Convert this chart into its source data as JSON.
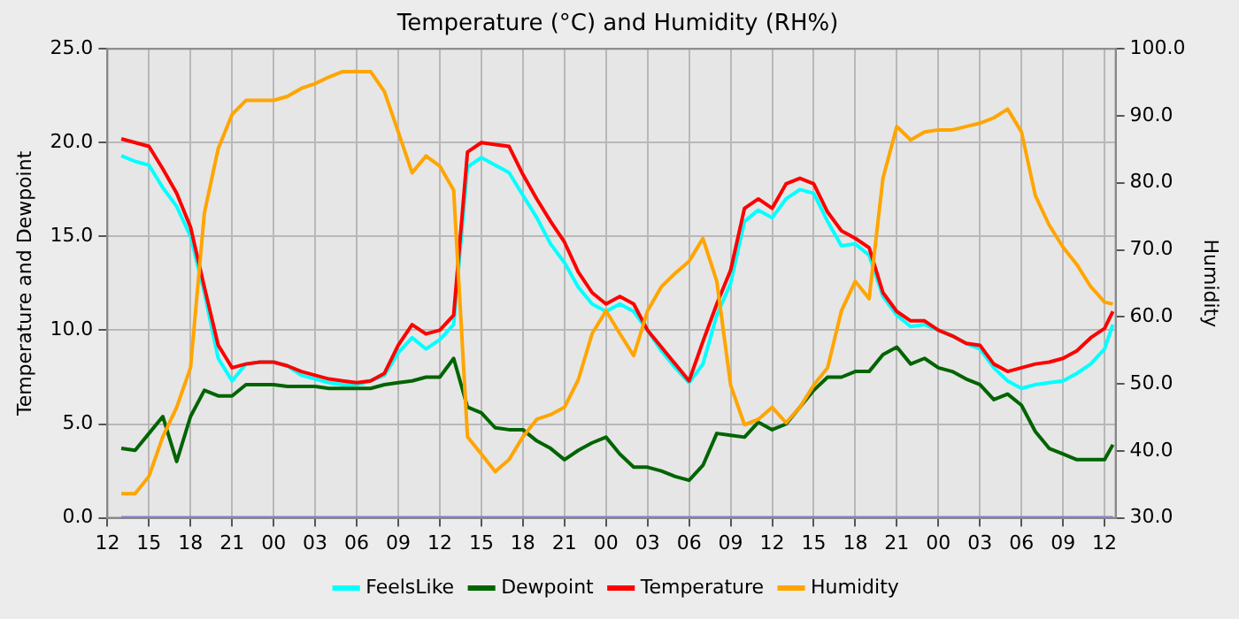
{
  "chart_data": {
    "type": "line",
    "title": "Temperature (°C) and Humidity (RH%)",
    "ylabel": "Temperature and Dewpoint",
    "y2label": "Humidity",
    "x": [
      13,
      14,
      15,
      16,
      17,
      18,
      19,
      20,
      21,
      22,
      23,
      24,
      25,
      26,
      27,
      28,
      29,
      30,
      31,
      32,
      33,
      34,
      35,
      36,
      37,
      38,
      39,
      40,
      41,
      42,
      43,
      44,
      45,
      46,
      47,
      48,
      49,
      50,
      51,
      52,
      53,
      54,
      55,
      56,
      57,
      58,
      59,
      60,
      61,
      62,
      63,
      64,
      65,
      66,
      67,
      68,
      69,
      70,
      71,
      72,
      73,
      74,
      75,
      76,
      77,
      78,
      79,
      80,
      81,
      82,
      83,
      84,
      84.6
    ],
    "series": [
      {
        "name": "FeelsLike",
        "color": "#00ffff",
        "values": [
          19.3,
          19.0,
          18.8,
          17.6,
          16.6,
          15.0,
          12.0,
          8.5,
          7.3,
          8.2,
          8.3,
          8.3,
          8.1,
          7.6,
          7.4,
          7.2,
          7.1,
          7.1,
          7.3,
          7.6,
          8.8,
          9.6,
          9.0,
          9.5,
          10.3,
          18.7,
          19.2,
          18.8,
          18.4,
          17.2,
          16.0,
          14.6,
          13.6,
          12.3,
          11.4,
          11.0,
          11.4,
          11.0,
          10.0,
          8.9,
          8.0,
          7.2,
          8.2,
          10.8,
          12.5,
          15.8,
          16.4,
          16.0,
          17.0,
          17.5,
          17.3,
          15.8,
          14.5,
          14.6,
          14.0,
          11.8,
          10.8,
          10.2,
          10.3,
          10.0,
          9.7,
          9.3,
          9.0,
          8.0,
          7.3,
          6.9,
          7.1,
          7.2,
          7.3,
          7.7,
          8.2,
          9.0,
          10.3
        ]
      },
      {
        "name": "Dewpoint",
        "color": "#006400",
        "values": [
          3.7,
          3.6,
          4.5,
          5.4,
          3.0,
          5.4,
          6.8,
          6.5,
          6.5,
          7.1,
          7.1,
          7.1,
          7.0,
          7.0,
          7.0,
          6.9,
          6.9,
          6.9,
          6.9,
          7.1,
          7.2,
          7.3,
          7.5,
          7.5,
          8.5,
          5.9,
          5.6,
          4.8,
          4.7,
          4.7,
          4.1,
          3.7,
          3.1,
          3.6,
          4.0,
          4.3,
          3.4,
          2.7,
          2.7,
          2.5,
          2.2,
          2.0,
          2.8,
          4.5,
          4.4,
          4.3,
          5.1,
          4.7,
          5.0,
          5.9,
          6.8,
          7.5,
          7.5,
          7.8,
          7.8,
          8.7,
          9.1,
          8.2,
          8.5,
          8.0,
          7.8,
          7.4,
          7.1,
          6.3,
          6.6,
          6.0,
          4.6,
          3.7,
          3.4,
          3.1,
          3.1,
          3.1,
          3.9
        ]
      },
      {
        "name": "Temperature",
        "color": "#ff0000",
        "values": [
          20.2,
          20.0,
          19.8,
          18.6,
          17.3,
          15.5,
          12.3,
          9.2,
          8.0,
          8.2,
          8.3,
          8.3,
          8.1,
          7.8,
          7.6,
          7.4,
          7.3,
          7.2,
          7.3,
          7.7,
          9.2,
          10.3,
          9.8,
          10.0,
          10.8,
          19.5,
          20.0,
          19.9,
          19.8,
          18.3,
          17.0,
          15.8,
          14.7,
          13.1,
          12.0,
          11.4,
          11.8,
          11.4,
          10.0,
          9.1,
          8.2,
          7.3,
          9.4,
          11.4,
          13.2,
          16.5,
          17.0,
          16.5,
          17.8,
          18.1,
          17.8,
          16.3,
          15.3,
          14.9,
          14.4,
          12.0,
          11.0,
          10.5,
          10.5,
          10.0,
          9.7,
          9.3,
          9.2,
          8.2,
          7.8,
          8.0,
          8.2,
          8.3,
          8.5,
          8.9,
          9.6,
          10.1,
          11.0
        ]
      },
      {
        "name": "Humidity",
        "color": "#ffa500",
        "axis": "y2",
        "values": [
          33.6,
          33.6,
          36.2,
          42.1,
          46.5,
          52.4,
          75.5,
          85.1,
          90.2,
          92.3,
          92.3,
          92.3,
          92.9,
          94.1,
          94.8,
          95.8,
          96.6,
          96.6,
          96.6,
          93.6,
          87.6,
          81.5,
          84.0,
          82.5,
          78.9,
          42.1,
          39.5,
          36.9,
          38.7,
          42.1,
          44.7,
          45.4,
          46.5,
          50.6,
          57.5,
          60.9,
          57.5,
          54.2,
          60.9,
          64.5,
          66.5,
          68.3,
          71.7,
          65.3,
          49.8,
          43.9,
          44.7,
          46.5,
          44.2,
          46.5,
          49.8,
          52.4,
          60.9,
          65.3,
          62.7,
          80.7,
          88.4,
          86.4,
          87.6,
          87.9,
          87.9,
          88.4,
          88.9,
          89.7,
          91.0,
          87.6,
          78.1,
          73.7,
          70.4,
          67.8,
          64.5,
          62.2,
          61.9
        ]
      },
      {
        "color": "#8080f0",
        "values": [
          0,
          0,
          0,
          0,
          0,
          0,
          0,
          0,
          0,
          0,
          0,
          0,
          0,
          0,
          0,
          0,
          0,
          0,
          0,
          0,
          0,
          0,
          0,
          0,
          0,
          0,
          0,
          0,
          0,
          0,
          0,
          0,
          0,
          0,
          0,
          0,
          0,
          0,
          0,
          0,
          0,
          0,
          0,
          0,
          0,
          0,
          0,
          0,
          0,
          0,
          0,
          0,
          0,
          0,
          0,
          0,
          0,
          0,
          0,
          0,
          0,
          0,
          0,
          0,
          0,
          0,
          0,
          0,
          0,
          0,
          0,
          0,
          0
        ]
      }
    ],
    "xlim": [
      12,
      84.8
    ],
    "xticks": [
      12,
      15,
      18,
      21,
      {
        "value": 24,
        "label": "00"
      },
      {
        "value": 27,
        "label": "03"
      },
      {
        "value": 30,
        "label": "06"
      },
      {
        "value": 33,
        "label": "09"
      },
      {
        "value": 36,
        "label": "12"
      },
      {
        "value": 39,
        "label": "15"
      },
      {
        "value": 42,
        "label": "18"
      },
      {
        "value": 45,
        "label": "21"
      },
      {
        "value": 48,
        "label": "00"
      },
      {
        "value": 51,
        "label": "03"
      },
      {
        "value": 54,
        "label": "06"
      },
      {
        "value": 57,
        "label": "09"
      },
      {
        "value": 60,
        "label": "12"
      },
      {
        "value": 63,
        "label": "15"
      },
      {
        "value": 66,
        "label": "18"
      },
      {
        "value": 69,
        "label": "21"
      },
      {
        "value": 72,
        "label": "00"
      },
      {
        "value": 75,
        "label": "03"
      },
      {
        "value": 78,
        "label": "06"
      },
      {
        "value": 81,
        "label": "09"
      },
      {
        "value": 84,
        "label": "12"
      }
    ],
    "ylim": [
      0,
      25
    ],
    "yticks": [
      {
        "value": 0,
        "label": "0.0"
      },
      {
        "value": 5,
        "label": "5.0"
      },
      {
        "value": 10,
        "label": "10.0"
      },
      {
        "value": 15,
        "label": "15.0"
      },
      {
        "value": 20,
        "label": "20.0"
      },
      {
        "value": 25,
        "label": "25.0"
      }
    ],
    "y2lim": [
      30,
      100
    ],
    "y2ticks": [
      {
        "value": 30,
        "label": "30.0"
      },
      {
        "value": 40,
        "label": "40.0"
      },
      {
        "value": 50,
        "label": "50.0"
      },
      {
        "value": 60,
        "label": "60.0"
      },
      {
        "value": 70,
        "label": "70.0"
      },
      {
        "value": 80,
        "label": "80.0"
      },
      {
        "value": 90,
        "label": "90.0"
      },
      {
        "value": 100,
        "label": "100.0"
      }
    ],
    "grid": true,
    "legend": "bottom",
    "marker": "none",
    "line_style": "solid"
  }
}
